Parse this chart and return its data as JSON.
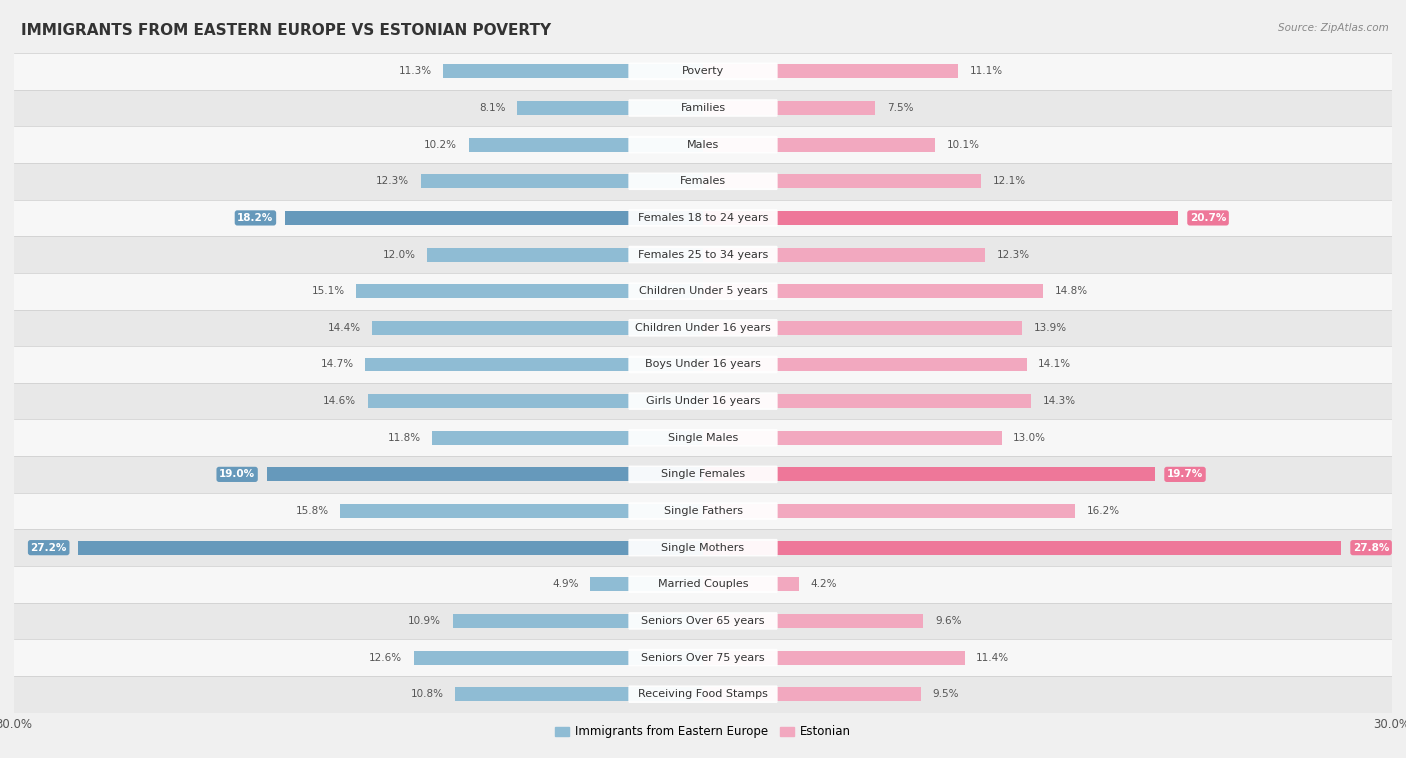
{
  "title": "IMMIGRANTS FROM EASTERN EUROPE VS ESTONIAN POVERTY",
  "source": "Source: ZipAtlas.com",
  "categories": [
    "Poverty",
    "Families",
    "Males",
    "Females",
    "Females 18 to 24 years",
    "Females 25 to 34 years",
    "Children Under 5 years",
    "Children Under 16 years",
    "Boys Under 16 years",
    "Girls Under 16 years",
    "Single Males",
    "Single Females",
    "Single Fathers",
    "Single Mothers",
    "Married Couples",
    "Seniors Over 65 years",
    "Seniors Over 75 years",
    "Receiving Food Stamps"
  ],
  "left_values": [
    11.3,
    8.1,
    10.2,
    12.3,
    18.2,
    12.0,
    15.1,
    14.4,
    14.7,
    14.6,
    11.8,
    19.0,
    15.8,
    27.2,
    4.9,
    10.9,
    12.6,
    10.8
  ],
  "right_values": [
    11.1,
    7.5,
    10.1,
    12.1,
    20.7,
    12.3,
    14.8,
    13.9,
    14.1,
    14.3,
    13.0,
    19.7,
    16.2,
    27.8,
    4.2,
    9.6,
    11.4,
    9.5
  ],
  "highlight_rows": [
    4,
    11,
    13
  ],
  "left_color_normal": "#8fbcd4",
  "left_color_highlight": "#6699bb",
  "right_color_normal": "#f2a8bf",
  "right_color_highlight": "#ee7799",
  "bg_color": "#f0f0f0",
  "row_color_even": "#f7f7f7",
  "row_color_odd": "#e8e8e8",
  "max_value": 30.0,
  "legend_left": "Immigrants from Eastern Europe",
  "legend_right": "Estonian",
  "title_fontsize": 11,
  "label_fontsize": 8,
  "value_fontsize": 7.5
}
